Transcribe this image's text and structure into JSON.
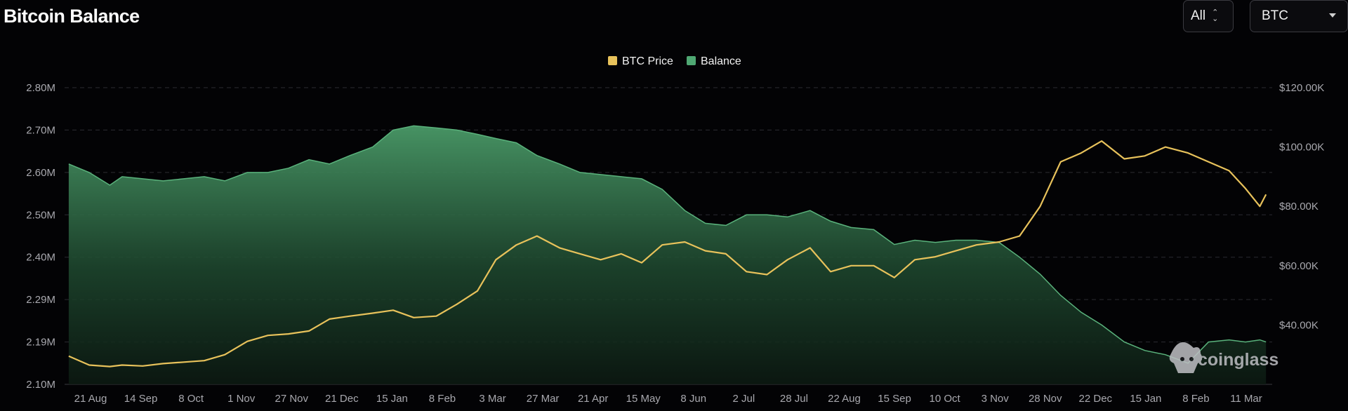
{
  "header": {
    "title": "Bitcoin Balance",
    "range_select": {
      "value": "All"
    },
    "coin_select": {
      "value": "BTC"
    }
  },
  "watermark": {
    "text": "coinglass"
  },
  "colors": {
    "price": "#e8c25b",
    "balance": "#4fa873",
    "background": "#030305",
    "grid": "#2b2b31"
  },
  "chart_data": {
    "type": "area",
    "legend": {
      "position": "top-center",
      "entries": [
        "BTC Price",
        "Balance"
      ]
    },
    "grid": true,
    "x_ticks": [
      "21 Aug",
      "14 Sep",
      "8 Oct",
      "1 Nov",
      "27 Nov",
      "21 Dec",
      "15 Jan",
      "8 Feb",
      "3 Mar",
      "27 Mar",
      "21 Apr",
      "15 May",
      "8 Jun",
      "2 Jul",
      "28 Jul",
      "22 Aug",
      "15 Sep",
      "10 Oct",
      "3 Nov",
      "28 Nov",
      "22 Dec",
      "15 Jan",
      "8 Feb",
      "11 Mar"
    ],
    "y_left": {
      "ticks": [
        "2.10M",
        "2.19M",
        "2.29M",
        "2.40M",
        "2.50M",
        "2.60M",
        "2.70M",
        "2.80M"
      ],
      "range": [
        2.1,
        2.8
      ],
      "unit": "M BTC"
    },
    "y_right": {
      "ticks": [
        "$40.00K",
        "$60.00K",
        "$80.00K",
        "$100.00K",
        "$120.00K"
      ],
      "range": [
        20,
        120
      ],
      "unit": "K USD"
    },
    "series": [
      {
        "name": "Balance",
        "axis": "left",
        "style": "area",
        "x": [
          "2023-08-10",
          "2023-08-20",
          "2023-08-30",
          "2023-09-05",
          "2023-09-15",
          "2023-09-25",
          "2023-10-05",
          "2023-10-15",
          "2023-10-25",
          "2023-11-05",
          "2023-11-15",
          "2023-11-25",
          "2023-12-05",
          "2023-12-15",
          "2023-12-25",
          "2024-01-05",
          "2024-01-15",
          "2024-01-25",
          "2024-02-05",
          "2024-02-15",
          "2024-02-25",
          "2024-03-05",
          "2024-03-15",
          "2024-03-25",
          "2024-04-05",
          "2024-04-15",
          "2024-04-25",
          "2024-05-05",
          "2024-05-15",
          "2024-05-25",
          "2024-06-05",
          "2024-06-15",
          "2024-06-25",
          "2024-07-05",
          "2024-07-15",
          "2024-07-25",
          "2024-08-05",
          "2024-08-15",
          "2024-08-25",
          "2024-09-05",
          "2024-09-15",
          "2024-09-25",
          "2024-10-05",
          "2024-10-15",
          "2024-10-25",
          "2024-11-05",
          "2024-11-15",
          "2024-11-25",
          "2024-12-05",
          "2024-12-15",
          "2024-12-25",
          "2025-01-05",
          "2025-01-15",
          "2025-01-25",
          "2025-02-05",
          "2025-02-15",
          "2025-02-25",
          "2025-03-05",
          "2025-03-12",
          "2025-03-15"
        ],
        "y": [
          2.62,
          2.6,
          2.57,
          2.59,
          2.585,
          2.58,
          2.585,
          2.59,
          2.58,
          2.6,
          2.6,
          2.61,
          2.63,
          2.62,
          2.64,
          2.66,
          2.7,
          2.71,
          2.705,
          2.7,
          2.69,
          2.68,
          2.67,
          2.64,
          2.62,
          2.6,
          2.595,
          2.59,
          2.585,
          2.56,
          2.51,
          2.48,
          2.475,
          2.5,
          2.5,
          2.495,
          2.51,
          2.485,
          2.47,
          2.465,
          2.43,
          2.44,
          2.435,
          2.44,
          2.44,
          2.435,
          2.4,
          2.36,
          2.31,
          2.27,
          2.24,
          2.2,
          2.18,
          2.17,
          2.15,
          2.2,
          2.205,
          2.2,
          2.205,
          2.2
        ]
      },
      {
        "name": "BTC Price",
        "axis": "right",
        "style": "line",
        "x": [
          "2023-08-10",
          "2023-08-20",
          "2023-08-30",
          "2023-09-05",
          "2023-09-15",
          "2023-09-25",
          "2023-10-05",
          "2023-10-15",
          "2023-10-25",
          "2023-11-05",
          "2023-11-15",
          "2023-11-25",
          "2023-12-05",
          "2023-12-15",
          "2023-12-25",
          "2024-01-05",
          "2024-01-15",
          "2024-01-25",
          "2024-02-05",
          "2024-02-15",
          "2024-02-25",
          "2024-03-05",
          "2024-03-15",
          "2024-03-25",
          "2024-04-05",
          "2024-04-15",
          "2024-04-25",
          "2024-05-05",
          "2024-05-15",
          "2024-05-25",
          "2024-06-05",
          "2024-06-15",
          "2024-06-25",
          "2024-07-05",
          "2024-07-15",
          "2024-07-25",
          "2024-08-05",
          "2024-08-15",
          "2024-08-25",
          "2024-09-05",
          "2024-09-15",
          "2024-09-25",
          "2024-10-05",
          "2024-10-15",
          "2024-10-25",
          "2024-11-05",
          "2024-11-15",
          "2024-11-25",
          "2024-12-05",
          "2024-12-15",
          "2024-12-25",
          "2025-01-05",
          "2025-01-15",
          "2025-01-25",
          "2025-02-05",
          "2025-02-15",
          "2025-02-25",
          "2025-03-05",
          "2025-03-12",
          "2025-03-15"
        ],
        "y": [
          29.5,
          26.5,
          26,
          26.5,
          26.2,
          27,
          27.5,
          28,
          30,
          34.5,
          36.5,
          37,
          38,
          42,
          43,
          44,
          45,
          42.5,
          43,
          47,
          51.5,
          62,
          67,
          70,
          66,
          64,
          62,
          64,
          61,
          67,
          68,
          65,
          64,
          58,
          57,
          62,
          66,
          58,
          60,
          60,
          56,
          62,
          63,
          65,
          67,
          68,
          70,
          80,
          95,
          98,
          102,
          96,
          97,
          100,
          98,
          95,
          92,
          86,
          80,
          84
        ]
      }
    ]
  }
}
